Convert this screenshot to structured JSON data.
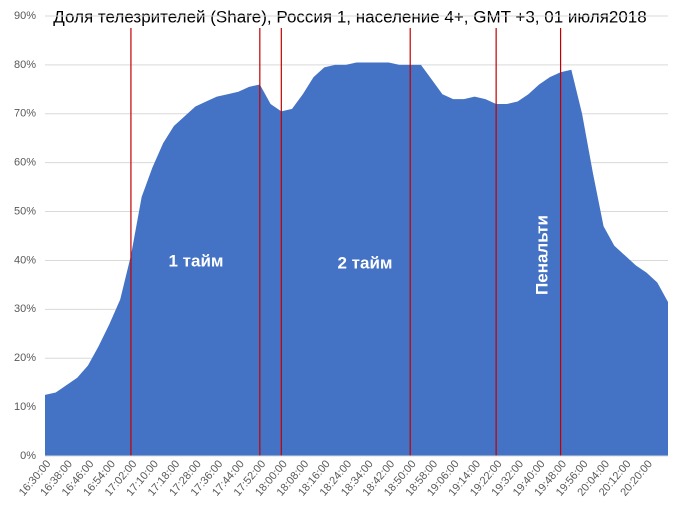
{
  "chart_data": {
    "type": "area",
    "title": "Доля телезрителей (Share), Россия 1, население 4+, GMT +3, 01 июля2018",
    "categories": [
      "16:30:00",
      null,
      "16:38:00",
      null,
      "16:46:00",
      null,
      "16:54:00",
      null,
      "17:02:00",
      null,
      "17:10:00",
      null,
      "17:18:00",
      null,
      "17:28:00",
      null,
      "17:36:00",
      null,
      "17:44:00",
      null,
      "17:52:00",
      null,
      "18:00:00",
      null,
      "18:08:00",
      null,
      "18:16:00",
      null,
      "18:24:00",
      null,
      "18:34:00",
      null,
      "18:42:00",
      null,
      "18:50:00",
      null,
      "18:58:00",
      null,
      "19:06:00",
      null,
      "19:14:00",
      null,
      "19:22:00",
      null,
      "19:32:00",
      null,
      "19:40:00",
      null,
      "19:48:00",
      null,
      "19:56:00",
      null,
      "20:04:00",
      null,
      "20:12:00",
      null,
      "20:20:00",
      null,
      null
    ],
    "values": [
      12.5,
      13,
      14.5,
      16,
      18.5,
      22.5,
      27,
      32,
      41,
      53,
      59,
      64,
      67.5,
      69.5,
      71.5,
      72.5,
      73.5,
      74,
      74.5,
      75.5,
      76,
      72,
      70.5,
      71,
      74,
      77.5,
      79.5,
      80,
      80,
      80.5,
      80.5,
      80.5,
      80.5,
      80,
      80,
      80,
      77,
      74,
      73,
      73,
      73.5,
      73,
      72,
      72,
      72.5,
      74,
      76,
      77.5,
      78.5,
      79,
      70,
      58,
      47,
      43,
      41,
      39,
      37.5,
      35.5,
      31.5
    ],
    "color": "#4472c4",
    "ylim": [
      0,
      90
    ],
    "yticks": [
      {
        "value": 0,
        "label": "0%"
      },
      {
        "value": 10,
        "label": "10%"
      },
      {
        "value": 20,
        "label": "20%"
      },
      {
        "value": 30,
        "label": "30%"
      },
      {
        "value": 40,
        "label": "40%"
      },
      {
        "value": 50,
        "label": "50%"
      },
      {
        "value": 60,
        "label": "60%"
      },
      {
        "value": 70,
        "label": "70%"
      },
      {
        "value": 80,
        "label": "80%"
      },
      {
        "value": 90,
        "label": "90%"
      }
    ],
    "grid": true,
    "markers": [
      "17:02:00",
      "17:52:00",
      "18:00:00",
      "18:50:00",
      "19:22:00",
      "19:48:00"
    ],
    "marker_color": "#c00000",
    "annotations": [
      "1 тайм",
      "2 тайм",
      "Пенальти"
    ]
  }
}
